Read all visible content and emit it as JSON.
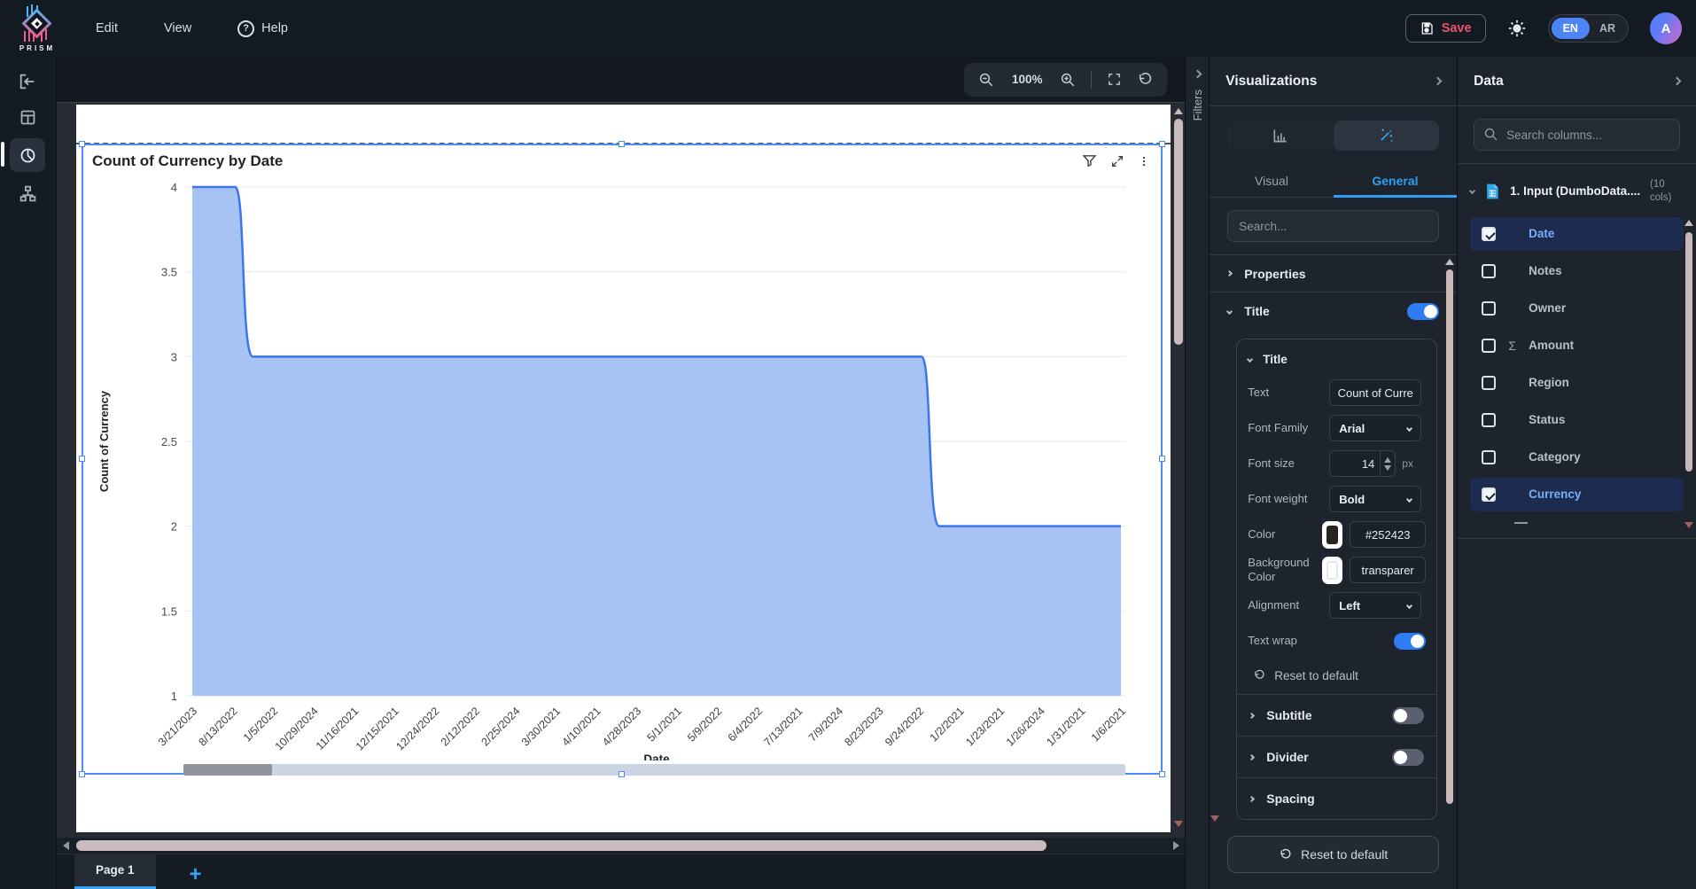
{
  "topbar": {
    "brand": "PRISM",
    "menu_edit": "Edit",
    "menu_view": "View",
    "menu_help": "Help",
    "help_glyph": "?",
    "save_label": "Save",
    "lang_en": "EN",
    "lang_ar": "AR",
    "avatar_initial": "A"
  },
  "canvas": {
    "zoom_level": "100%",
    "filters_label": "Filters",
    "page_tab_label": "Page 1",
    "add_page_label": "+"
  },
  "chart_data": {
    "type": "area",
    "title": "Count of Currency by Date",
    "xlabel": "Date",
    "ylabel": "Count of Currency",
    "ylim": [
      1,
      4
    ],
    "yticks": [
      1,
      1.5,
      2,
      2.5,
      3,
      3.5,
      4
    ],
    "grid": true,
    "legend": false,
    "line_color": "#3b76ee",
    "fill_color": "#a6c3f3",
    "categories": [
      "3/21/2023",
      "8/13/2022",
      "1/5/2022",
      "10/29/2024",
      "11/16/2021",
      "12/15/2021",
      "12/24/2022",
      "2/12/2022",
      "2/25/2024",
      "3/30/2021",
      "4/10/2021",
      "4/28/2023",
      "5/1/2021",
      "5/9/2022",
      "6/4/2022",
      "7/13/2021",
      "7/9/2024",
      "8/23/2023",
      "9/24/2022",
      "1/2/2021",
      "1/23/2021",
      "1/26/2024",
      "1/31/2021",
      "1/6/2021"
    ],
    "values": [
      4,
      4,
      3,
      3,
      3,
      3,
      3,
      3,
      3,
      3,
      3,
      3,
      3,
      3,
      3,
      3,
      3,
      3,
      3,
      2,
      2,
      2,
      2,
      2
    ]
  },
  "viz_panel": {
    "title": "Visualizations",
    "tab_visual": "Visual",
    "tab_general": "General",
    "search_placeholder": "Search...",
    "properties_label": "Properties",
    "title_section_label": "Title",
    "inner_title_label": "Title",
    "text_label": "Text",
    "text_value": "Count of Curre",
    "font_family_label": "Font Family",
    "font_family_value": "Arial",
    "font_size_label": "Font size",
    "font_size_value": "14",
    "font_size_unit": "px",
    "font_weight_label": "Font weight",
    "font_weight_value": "Bold",
    "color_label": "Color",
    "color_value": "#252423",
    "color_swatch": "#252423",
    "bg_color_label": "Background Color",
    "bg_color_value": "transparer",
    "alignment_label": "Alignment",
    "alignment_value": "Left",
    "text_wrap_label": "Text wrap",
    "reset_link_label": "Reset to default",
    "subtitle_label": "Subtitle",
    "divider_label": "Divider",
    "spacing_label": "Spacing",
    "reset_button_label": "Reset to default"
  },
  "data_panel": {
    "title": "Data",
    "search_placeholder": "Search columns...",
    "table_name": "1. Input (DumboData....",
    "table_cols_note": "(10 cols)",
    "fields": [
      {
        "label": "Date",
        "checked": true
      },
      {
        "label": "Notes",
        "checked": false
      },
      {
        "label": "Owner",
        "checked": false
      },
      {
        "label": "Amount",
        "checked": false,
        "sigma": true
      },
      {
        "label": "Region",
        "checked": false
      },
      {
        "label": "Status",
        "checked": false
      },
      {
        "label": "Category",
        "checked": false
      },
      {
        "label": "Currency",
        "checked": true
      }
    ]
  }
}
